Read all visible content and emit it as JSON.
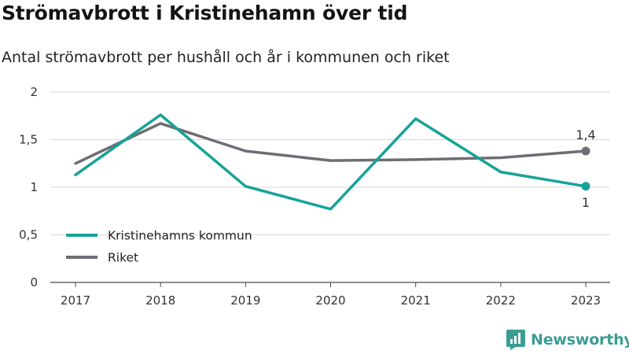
{
  "header": {
    "title": "Strömavbrott i Kristinehamn över tid",
    "subtitle": "Antal strömavbrott per hushåll och år i kommunen och riket"
  },
  "brand": {
    "name": "Newsworthy",
    "color": "#3a9d92",
    "icon": "newsworthy-logo-icon"
  },
  "chart_data": {
    "type": "line",
    "title": "Strömavbrott i Kristinehamn över tid",
    "subtitle": "Antal strömavbrott per hushåll och år i kommunen och riket",
    "xlabel": "",
    "ylabel": "",
    "x": [
      "2017",
      "2018",
      "2019",
      "2020",
      "2021",
      "2022",
      "2023"
    ],
    "ylim": [
      0,
      2
    ],
    "yticks": [
      0,
      0.5,
      1,
      1.5,
      2
    ],
    "ytick_labels": [
      "0",
      "0,5",
      "1",
      "1,5",
      "2"
    ],
    "grid": true,
    "legend": "bottom-left",
    "series": [
      {
        "name": "Kristinehamns kommun",
        "color": "#17a398",
        "values": [
          1.13,
          1.76,
          1.01,
          0.77,
          1.72,
          1.16,
          1.01
        ],
        "end_label": "1"
      },
      {
        "name": "Riket",
        "color": "#6e6d73",
        "values": [
          1.25,
          1.67,
          1.38,
          1.28,
          1.29,
          1.31,
          1.38
        ],
        "end_label": "1,4"
      }
    ]
  }
}
